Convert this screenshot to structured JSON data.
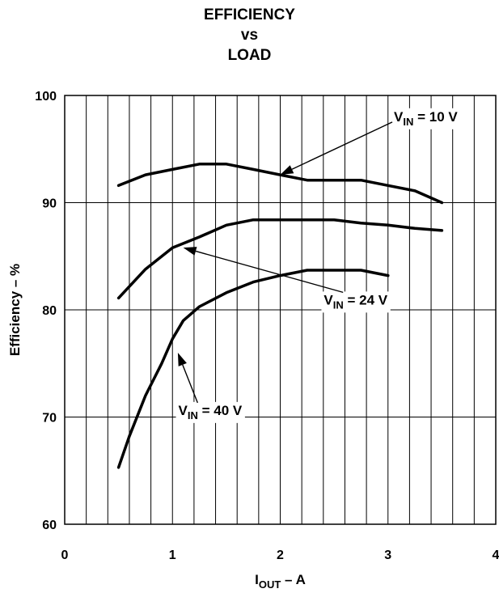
{
  "chart_data": {
    "type": "line",
    "title_lines": [
      "EFFICIENCY",
      "vs",
      "LOAD"
    ],
    "xlabel": {
      "main": "I",
      "sub": "OUT",
      "rest": " – A"
    },
    "ylabel": "Efficiency – %",
    "xlim": [
      0,
      4
    ],
    "ylim": [
      60,
      100
    ],
    "x_ticks": [
      0,
      1,
      2,
      3,
      4
    ],
    "y_ticks": [
      60,
      70,
      80,
      90,
      100
    ],
    "x_minor_step": 0.2,
    "y_major_step": 10,
    "grid": true,
    "series": [
      {
        "name": "V_IN = 10 V",
        "label": {
          "main": "V",
          "sub": "IN",
          "rest": " = 10 V"
        },
        "x": [
          0.5,
          0.75,
          1.0,
          1.25,
          1.5,
          1.75,
          2.0,
          2.25,
          2.5,
          2.75,
          3.0,
          3.25,
          3.5
        ],
        "y": [
          91.6,
          92.6,
          93.1,
          93.6,
          93.6,
          93.1,
          92.6,
          92.1,
          92.1,
          92.1,
          91.6,
          91.1,
          90.0
        ]
      },
      {
        "name": "V_IN = 24 V",
        "label": {
          "main": "V",
          "sub": "IN",
          "rest": " = 24 V"
        },
        "x": [
          0.5,
          0.75,
          1.0,
          1.25,
          1.5,
          1.75,
          2.0,
          2.25,
          2.5,
          2.75,
          3.0,
          3.25,
          3.5
        ],
        "y": [
          81.1,
          83.8,
          85.8,
          86.8,
          87.9,
          88.4,
          88.4,
          88.4,
          88.4,
          88.1,
          87.9,
          87.6,
          87.4
        ]
      },
      {
        "name": "V_IN = 40 V",
        "label": {
          "main": "V",
          "sub": "IN",
          "rest": " = 40 V"
        },
        "x": [
          0.5,
          0.6,
          0.75,
          0.9,
          1.0,
          1.1,
          1.25,
          1.5,
          1.75,
          2.0,
          2.25,
          2.5,
          2.75,
          3.0
        ],
        "y": [
          65.3,
          68.2,
          72.0,
          75.0,
          77.3,
          79.0,
          80.3,
          81.6,
          82.6,
          83.2,
          83.7,
          83.7,
          83.7,
          83.2
        ]
      }
    ],
    "annotations": [
      {
        "series": 0,
        "text_anchor": [
          3.35,
          97.6
        ],
        "arrow_to": [
          2.0,
          92.6
        ]
      },
      {
        "series": 1,
        "text_anchor": [
          2.7,
          80.5
        ],
        "arrow_to": [
          1.1,
          85.8
        ]
      },
      {
        "series": 2,
        "text_anchor": [
          1.35,
          70.2
        ],
        "arrow_to": [
          1.05,
          76.0
        ]
      }
    ]
  }
}
